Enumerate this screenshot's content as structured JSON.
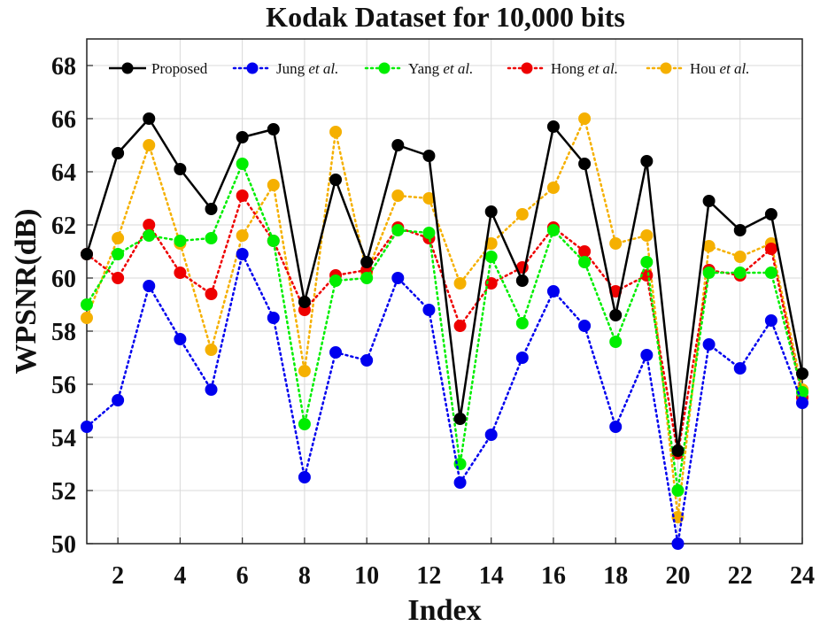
{
  "chart_data": {
    "type": "line",
    "title": "Kodak Dataset for 10,000 bits",
    "xlabel": "Index",
    "ylabel": "WPSNR(dB)",
    "xlim": [
      1,
      24
    ],
    "ylim": [
      50,
      69
    ],
    "xticks": [
      2,
      4,
      6,
      8,
      10,
      12,
      14,
      16,
      18,
      20,
      22,
      24
    ],
    "yticks": [
      50,
      52,
      54,
      56,
      58,
      60,
      62,
      64,
      66,
      68
    ],
    "grid": true,
    "legend_placement": "top",
    "x": [
      1,
      2,
      3,
      4,
      5,
      6,
      7,
      8,
      9,
      10,
      11,
      12,
      13,
      14,
      15,
      16,
      17,
      18,
      19,
      20,
      21,
      22,
      23,
      24
    ],
    "series": [
      {
        "name": "Proposed",
        "name_main": "Proposed",
        "name_suffix": "",
        "color": "#000000",
        "line_style": "solid",
        "values": [
          60.9,
          64.7,
          66.0,
          64.1,
          62.6,
          65.3,
          65.6,
          59.1,
          63.7,
          60.6,
          65.0,
          64.6,
          54.7,
          62.5,
          59.9,
          65.7,
          64.3,
          58.6,
          64.4,
          53.5,
          62.9,
          61.8,
          62.4,
          56.4
        ]
      },
      {
        "name": "Jung et al.",
        "name_main": "Jung ",
        "name_suffix": "et al.",
        "color": "#0000ee",
        "line_style": "dotted",
        "values": [
          54.4,
          55.4,
          59.7,
          57.7,
          55.8,
          60.9,
          58.5,
          52.5,
          57.2,
          56.9,
          60.0,
          58.8,
          52.3,
          54.1,
          57.0,
          59.5,
          58.2,
          54.4,
          57.1,
          50.0,
          57.5,
          56.6,
          58.4,
          55.3
        ]
      },
      {
        "name": "Yang et al.",
        "name_main": "Yang ",
        "name_suffix": "et al.",
        "color": "#00ee00",
        "line_style": "dotted",
        "values": [
          59.0,
          60.9,
          61.6,
          61.4,
          61.5,
          64.3,
          61.4,
          54.5,
          59.9,
          60.0,
          61.8,
          61.7,
          53.0,
          60.8,
          58.3,
          61.8,
          60.6,
          57.6,
          60.6,
          52.0,
          60.2,
          60.2,
          60.2,
          55.7
        ]
      },
      {
        "name": "Hong et al.",
        "name_main": "Hong ",
        "name_suffix": "et al.",
        "color": "#ee0000",
        "line_style": "dotted",
        "values": [
          60.9,
          60.0,
          62.0,
          60.2,
          59.4,
          63.1,
          61.4,
          58.8,
          60.1,
          60.3,
          61.9,
          61.5,
          58.2,
          59.8,
          60.4,
          61.9,
          61.0,
          59.5,
          60.1,
          53.4,
          60.3,
          60.1,
          61.1,
          55.5
        ]
      },
      {
        "name": "Hou et al.",
        "name_main": "Hou ",
        "name_suffix": "et al.",
        "color": "#f5b000",
        "line_style": "dotted",
        "values": [
          58.5,
          61.5,
          65.0,
          61.3,
          57.3,
          61.6,
          63.5,
          56.5,
          65.5,
          60.2,
          63.1,
          63.0,
          59.8,
          61.3,
          62.4,
          63.4,
          66.0,
          61.3,
          61.6,
          51.0,
          61.2,
          60.8,
          61.3,
          55.8
        ]
      }
    ]
  }
}
